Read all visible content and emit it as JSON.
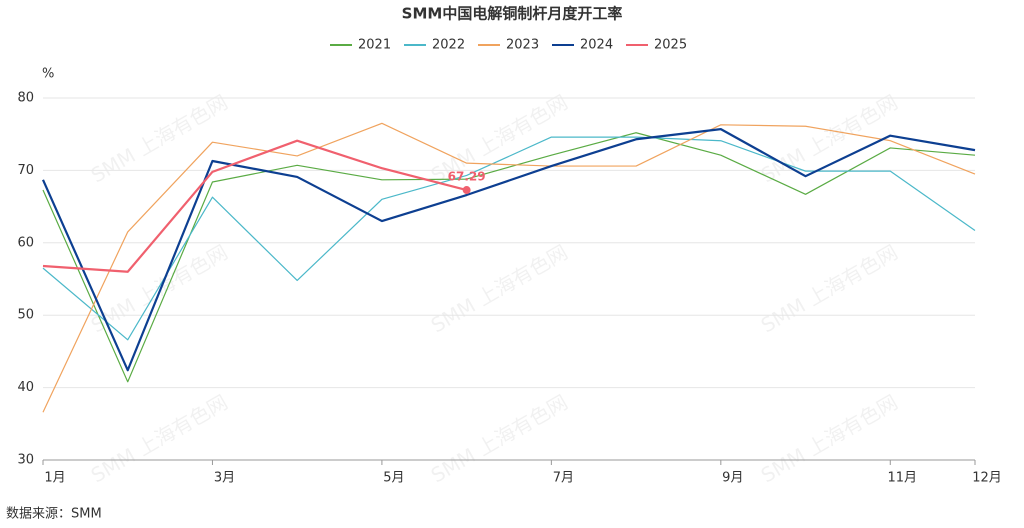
{
  "chart_data": {
    "type": "line",
    "title": "SMM中国电解铜制杆月度开工率",
    "y_label": "%",
    "source": "数据来源：SMM",
    "watermark": "SMM 上海有色网",
    "categories": [
      "1月",
      null,
      "3月",
      null,
      "5月",
      null,
      "7月",
      null,
      "9月",
      null,
      "11月",
      "12月"
    ],
    "series": [
      {
        "name": "2021",
        "color": "#5aab44",
        "line_width": 1.2,
        "values": [
          67.3,
          40.8,
          68.4,
          70.7,
          68.7,
          68.8,
          72.1,
          75.2,
          72.1,
          66.7,
          73.1,
          72.1
        ]
      },
      {
        "name": "2022",
        "color": "#4bb8c9",
        "line_width": 1.2,
        "values": [
          56.5,
          46.6,
          66.3,
          54.8,
          66.0,
          69.3,
          74.6,
          74.6,
          74.1,
          69.9,
          69.9,
          61.7
        ]
      },
      {
        "name": "2023",
        "color": "#f0a35e",
        "line_width": 1.2,
        "values": [
          36.6,
          61.5,
          73.9,
          72.0,
          76.5,
          71.0,
          70.6,
          70.6,
          76.3,
          76.1,
          74.1,
          69.5
        ]
      },
      {
        "name": "2024",
        "color": "#0d3f91",
        "line_width": 2.2,
        "values": [
          68.7,
          42.4,
          71.3,
          69.1,
          63.0,
          66.6,
          70.6,
          74.3,
          75.7,
          69.2,
          74.8,
          72.8
        ]
      },
      {
        "name": "2025",
        "color": "#f0606e",
        "line_width": 2.2,
        "values": [
          56.8,
          56.0,
          69.8,
          74.1,
          70.3,
          67.29,
          null,
          null,
          null,
          null,
          null,
          null
        ]
      }
    ],
    "ylim": [
      30,
      80
    ],
    "yticks": [
      30,
      40,
      50,
      60,
      70,
      80
    ],
    "grid": true
  }
}
